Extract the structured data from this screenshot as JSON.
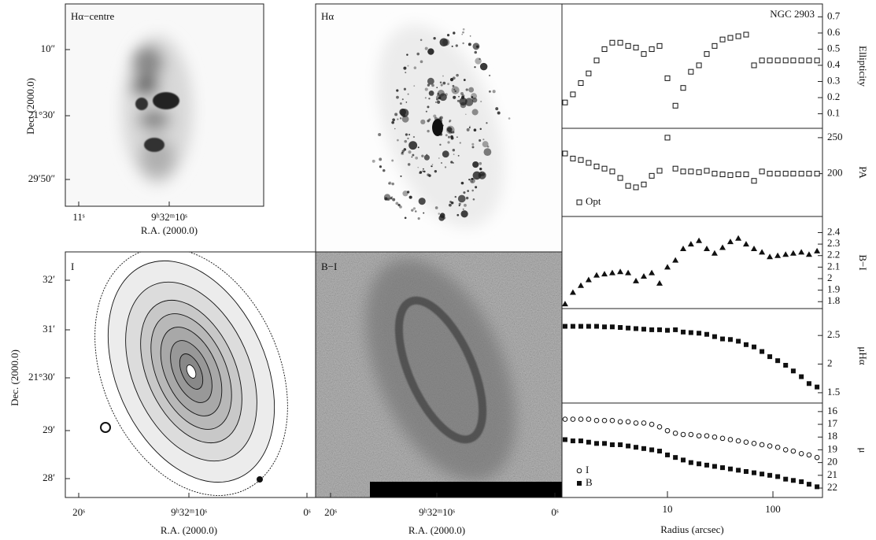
{
  "image_panels": [
    {
      "label": "Hα−centre",
      "xticks": [
        "11ˢ",
        "9ʰ32ᵐ10ˢ"
      ],
      "yticks": [
        "10″",
        "21°30′",
        "29′50″"
      ],
      "xlabel": "R.A. (2000.0)",
      "ylabel": "Dec. (2000.0)"
    },
    {
      "label": "Hα"
    },
    {
      "label": "I",
      "xticks": [
        "20ˢ",
        "9ʰ32ᵐ10ˢ",
        "0ˢ"
      ],
      "yticks": [
        "32′",
        "31′",
        "21°30′",
        "29′",
        "28′"
      ],
      "xlabel": "R.A. (2000.0)",
      "ylabel": "Dec. (2000.0)"
    },
    {
      "label": "B−I",
      "xticks": [
        "20ˢ",
        "9ʰ32ᵐ10ˢ",
        "0ˢ"
      ],
      "xlabel": "R.A. (2000.0)"
    }
  ],
  "chart_data": [
    {
      "type": "scatter",
      "ylabel": "Ellipticity",
      "annotation": "NGC 2903",
      "xscale": "log",
      "xlim": [
        1,
        295
      ],
      "ylim": [
        0.01,
        0.78
      ],
      "yticks": [
        0.1,
        0.2,
        0.3,
        0.4,
        0.5,
        0.6,
        0.7
      ],
      "series": [
        {
          "marker": "open-square",
          "color": "#111111",
          "x": [
            1.07,
            1.27,
            1.51,
            1.79,
            2.13,
            2.53,
            3.0,
            3.57,
            4.24,
            5.03,
            5.97,
            7.1,
            8.42,
            10,
            11.9,
            14.1,
            16.7,
            19.9,
            23.6,
            28,
            33.3,
            39.5,
            47,
            55.7,
            66.2,
            78.7,
            93.4,
            111,
            132,
            156,
            186,
            220,
            262
          ],
          "values": [
            0.17,
            0.22,
            0.29,
            0.35,
            0.43,
            0.5,
            0.54,
            0.54,
            0.52,
            0.51,
            0.47,
            0.5,
            0.52,
            0.32,
            0.15,
            0.26,
            0.36,
            0.4,
            0.47,
            0.52,
            0.56,
            0.57,
            0.58,
            0.59,
            0.4,
            0.43,
            0.43,
            0.43,
            0.43,
            0.43,
            0.43,
            0.43,
            0.43
          ]
        }
      ]
    },
    {
      "type": "scatter",
      "ylabel": "PA",
      "xscale": "log",
      "xlim": [
        1,
        295
      ],
      "ylim": [
        140.5,
        263
      ],
      "yticks": [
        200,
        250
      ],
      "legend": "lower left",
      "series": [
        {
          "name": "Opt",
          "marker": "open-square",
          "color": "#111111",
          "x": [
            1.07,
            1.27,
            1.51,
            1.79,
            2.13,
            2.53,
            3.0,
            3.57,
            4.24,
            5.03,
            5.97,
            7.1,
            8.42,
            10,
            11.9,
            14.1,
            16.7,
            19.9,
            23.6,
            28,
            33.3,
            39.5,
            47,
            55.7,
            66.2,
            78.7,
            93.4,
            111,
            132,
            156,
            186,
            220,
            262
          ],
          "values": [
            228,
            221,
            219,
            215,
            210,
            207,
            203,
            194,
            183,
            181,
            185,
            197,
            204,
            250,
            207,
            203,
            203,
            202,
            204,
            200,
            199,
            198,
            199,
            199,
            190,
            203,
            200,
            200,
            200,
            200,
            200,
            200,
            200
          ]
        }
      ]
    },
    {
      "type": "scatter",
      "ylabel": "B−I",
      "xscale": "log",
      "xlim": [
        1,
        295
      ],
      "ylim": [
        1.74,
        2.54
      ],
      "yticks": [
        1.8,
        1.9,
        2,
        2.1,
        2.2,
        2.3,
        2.4
      ],
      "series": [
        {
          "marker": "filled-triangle",
          "color": "#111111",
          "x": [
            1.07,
            1.27,
            1.51,
            1.79,
            2.13,
            2.53,
            3.0,
            3.57,
            4.24,
            5.03,
            5.97,
            7.1,
            8.42,
            10,
            11.9,
            14.1,
            16.7,
            19.9,
            23.6,
            28,
            33.3,
            39.5,
            47,
            55.7,
            66.2,
            78.7,
            93.4,
            111,
            132,
            156,
            186,
            220,
            262
          ],
          "values": [
            1.78,
            1.88,
            1.94,
            1.99,
            2.03,
            2.04,
            2.05,
            2.06,
            2.05,
            1.98,
            2.02,
            2.05,
            1.96,
            2.1,
            2.16,
            2.26,
            2.3,
            2.33,
            2.26,
            2.22,
            2.27,
            2.32,
            2.35,
            2.3,
            2.26,
            2.23,
            2.19,
            2.2,
            2.21,
            2.22,
            2.23,
            2.21,
            2.24
          ]
        }
      ]
    },
    {
      "type": "scatter",
      "ylabel": "μHα",
      "xscale": "log",
      "xlim": [
        1,
        295
      ],
      "ylim": [
        1.32,
        2.97
      ],
      "yticks": [
        1.5,
        2,
        2.5
      ],
      "series": [
        {
          "marker": "filled-square",
          "color": "#111111",
          "x": [
            1.07,
            1.27,
            1.51,
            1.79,
            2.13,
            2.53,
            3.0,
            3.57,
            4.24,
            5.03,
            5.97,
            7.1,
            8.42,
            10,
            11.9,
            14.1,
            16.7,
            19.9,
            23.6,
            28,
            33.3,
            39.5,
            47,
            55.7,
            66.2,
            78.7,
            93.4,
            111,
            132,
            156,
            186,
            220,
            262
          ],
          "values": [
            2.66,
            2.66,
            2.66,
            2.66,
            2.66,
            2.65,
            2.65,
            2.64,
            2.63,
            2.62,
            2.61,
            2.6,
            2.6,
            2.59,
            2.6,
            2.56,
            2.55,
            2.54,
            2.52,
            2.48,
            2.44,
            2.43,
            2.4,
            2.34,
            2.3,
            2.22,
            2.13,
            2.06,
            1.98,
            1.88,
            1.78,
            1.66,
            1.6
          ]
        }
      ]
    },
    {
      "type": "scatter",
      "ylabel": "μ",
      "xlabel": "Radius (arcsec)",
      "xscale": "log",
      "xlim": [
        1,
        295
      ],
      "xticks": [
        10,
        100
      ],
      "ylim": [
        22.74,
        15.33
      ],
      "yticks": [
        16,
        17,
        18,
        19,
        20,
        21,
        22
      ],
      "legend": "lower left",
      "series": [
        {
          "name": "I",
          "marker": "open-circle",
          "color": "#111111",
          "x": [
            1.07,
            1.27,
            1.51,
            1.79,
            2.13,
            2.53,
            3.0,
            3.57,
            4.24,
            5.03,
            5.97,
            7.1,
            8.42,
            10,
            11.9,
            14.1,
            16.7,
            19.9,
            23.6,
            28,
            33.3,
            39.5,
            47,
            55.7,
            66.2,
            78.7,
            93.4,
            111,
            132,
            156,
            186,
            220,
            262
          ],
          "values": [
            16.6,
            16.6,
            16.6,
            16.6,
            16.7,
            16.7,
            16.7,
            16.8,
            16.8,
            16.9,
            16.9,
            17.0,
            17.2,
            17.5,
            17.7,
            17.8,
            17.8,
            17.9,
            17.9,
            18.0,
            18.1,
            18.2,
            18.3,
            18.4,
            18.5,
            18.6,
            18.7,
            18.8,
            19.0,
            19.1,
            19.3,
            19.4,
            19.6
          ]
        },
        {
          "name": "B",
          "marker": "filled-square",
          "color": "#111111",
          "x": [
            1.07,
            1.27,
            1.51,
            1.79,
            2.13,
            2.53,
            3.0,
            3.57,
            4.24,
            5.03,
            5.97,
            7.1,
            8.42,
            10,
            11.9,
            14.1,
            16.7,
            19.9,
            23.6,
            28,
            33.3,
            39.5,
            47,
            55.7,
            66.2,
            78.7,
            93.4,
            111,
            132,
            156,
            186,
            220,
            262
          ],
          "values": [
            18.2,
            18.3,
            18.3,
            18.4,
            18.5,
            18.5,
            18.6,
            18.6,
            18.7,
            18.8,
            18.9,
            19.0,
            19.1,
            19.4,
            19.6,
            19.8,
            20.0,
            20.1,
            20.2,
            20.3,
            20.4,
            20.5,
            20.6,
            20.7,
            20.8,
            20.9,
            21.0,
            21.1,
            21.3,
            21.4,
            21.5,
            21.7,
            21.9
          ]
        }
      ]
    }
  ]
}
